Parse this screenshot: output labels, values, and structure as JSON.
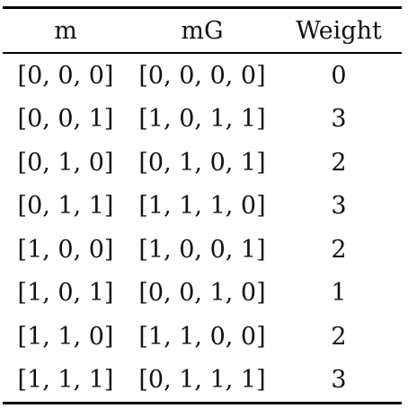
{
  "table": {
    "headers": [
      "m",
      "mG",
      "Weight"
    ],
    "rows": [
      [
        "[0, 0, 0]",
        "[0, 0, 0, 0]",
        "0"
      ],
      [
        "[0, 0, 1]",
        "[1, 0, 1, 1]",
        "3"
      ],
      [
        "[0, 1, 0]",
        "[0, 1, 0, 1]",
        "2"
      ],
      [
        "[0, 1, 1]",
        "[1, 1, 1, 0]",
        "3"
      ],
      [
        "[1, 0, 0]",
        "[1, 0, 0, 1]",
        "2"
      ],
      [
        "[1, 0, 1]",
        "[0, 0, 1, 0]",
        "1"
      ],
      [
        "[1, 1, 0]",
        "[1, 1, 0, 0]",
        "2"
      ],
      [
        "[1, 1, 1]",
        "[0, 1, 1, 1]",
        "3"
      ]
    ]
  }
}
